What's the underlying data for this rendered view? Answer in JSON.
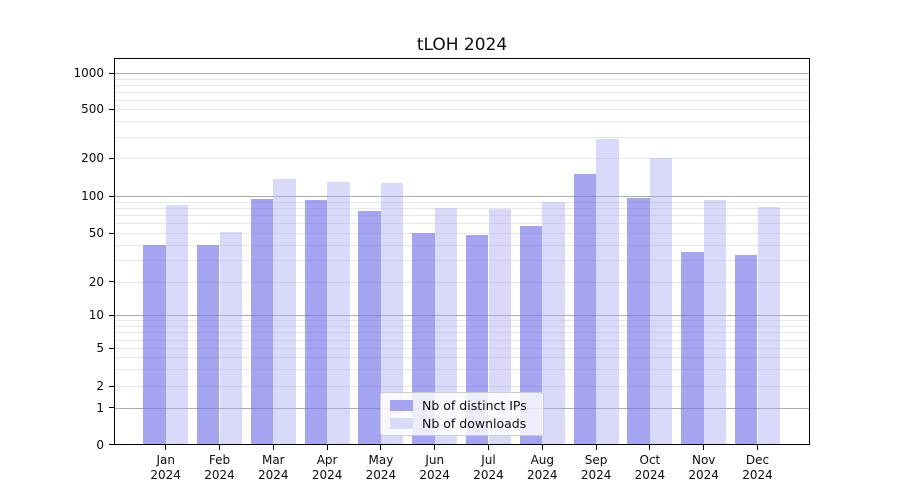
{
  "chart_data": {
    "type": "bar",
    "title": "tLOH 2024",
    "categories": [
      "Jan",
      "Feb",
      "Mar",
      "Apr",
      "May",
      "Jun",
      "Jul",
      "Aug",
      "Sep",
      "Oct",
      "Nov",
      "Dec"
    ],
    "category_year": "2024",
    "series": [
      {
        "name": "Nb of distinct IPs",
        "color": "#a4a4f0",
        "fill": "rgba(115,115,232,0.65)",
        "values": [
          40,
          40,
          95,
          93,
          75,
          50,
          48,
          57,
          150,
          96,
          35,
          33
        ]
      },
      {
        "name": "Nb of downloads",
        "color": "#d9d9f8",
        "fill": "rgba(170,170,243,0.45)",
        "values": [
          85,
          51,
          136,
          130,
          128,
          80,
          78,
          90,
          285,
          200,
          93,
          81
        ]
      }
    ],
    "xlabel": "",
    "ylabel": "",
    "yscale": "symlog",
    "yticks": [
      0,
      1,
      2,
      5,
      10,
      20,
      50,
      100,
      200,
      500,
      1000
    ],
    "ylim": [
      0,
      1400
    ],
    "grid": true,
    "legend_position": "lower center",
    "axis_colors": {
      "spine": "#000000",
      "major_grid": "#ababab",
      "minor_grid": "#e7e7e7",
      "text": "#0d0d0d"
    }
  }
}
